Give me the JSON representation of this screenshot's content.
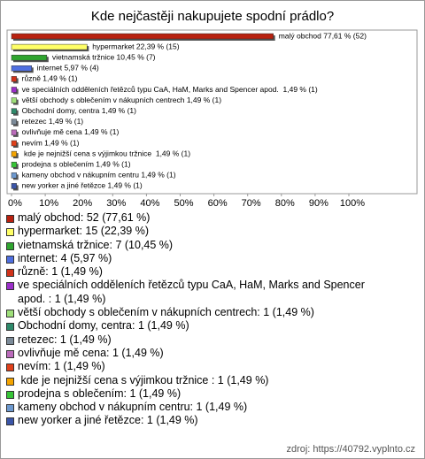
{
  "chart_data": {
    "type": "hbar",
    "title": "Kde nejčastěji nakupujete spodní prádlo?",
    "values": [
      77.61,
      22.39,
      10.45,
      5.97,
      1.49,
      1.49,
      1.49,
      1.49,
      1.49,
      1.49,
      1.49,
      1.49,
      1.49,
      1.49,
      1.49
    ],
    "value_labels": [
      "malý obchod 77,61 % (52)",
      "hypermarket 22,39 % (15)",
      "vietnamská tržnice 10,45 % (7)",
      "internet 5,97 % (4)",
      "různě 1,49 % (1)",
      "ve speciálních odděleních řetězců typu CaA, HaM, Marks and Spencer apod.  1,49 % (1)",
      "větší obchody s oblečením v nákupních centrech 1,49 % (1)",
      "Obchodní domy, centra 1,49 % (1)",
      "retezec 1,49 % (1)",
      "ovlivňuje mě cena 1,49 % (1)",
      "nevím 1,49 % (1)",
      " kde je nejnižší cena s výjimkou tržnice  1,49 % (1)",
      "prodejna s oblečením 1,49 % (1)",
      "kameny obchod v nákupním centru 1,49 % (1)",
      "new yorker a jiné řetězce 1,49 % (1)"
    ],
    "colors": [
      "#b8210f",
      "#ffff66",
      "#2fa52f",
      "#4f6fe0",
      "#d0321a",
      "#9b2fc9",
      "#9fe07a",
      "#2e8a6b",
      "#7c8b99",
      "#bb6bbb",
      "#e0401a",
      "#f4a400",
      "#37c437",
      "#6d99cf",
      "#3a55a8"
    ],
    "xlim": [
      0,
      100
    ],
    "xticks": [
      {
        "value": 0,
        "label": "0%"
      },
      {
        "value": 10,
        "label": "10%"
      },
      {
        "value": 20,
        "label": "20%"
      },
      {
        "value": 30,
        "label": "30%"
      },
      {
        "value": 40,
        "label": "40%"
      },
      {
        "value": 50,
        "label": "50%"
      },
      {
        "value": 60,
        "label": "60%"
      },
      {
        "value": 70,
        "label": "70%"
      },
      {
        "value": 80,
        "label": "80%"
      },
      {
        "value": 90,
        "label": "90%"
      },
      {
        "value": 100,
        "label": "100%"
      }
    ],
    "legend": [
      "malý obchod: 52 (77,61 %)",
      "hypermarket: 15 (22,39 %)",
      "vietnamská tržnice: 7 (10,45 %)",
      "internet: 4 (5,97 %)",
      "různě: 1 (1,49 %)",
      "ve speciálních odděleních řetězců typu CaA, HaM, Marks and Spencer apod. : 1 (1,49 %)",
      "větší obchody s oblečením v nákupních centrech: 1 (1,49 %)",
      "Obchodní domy, centra: 1 (1,49 %)",
      "retezec: 1 (1,49 %)",
      "ovlivňuje mě cena: 1 (1,49 %)",
      "nevím: 1 (1,49 %)",
      " kde je nejnižší cena s výjimkou tržnice : 1 (1,49 %)",
      "prodejna s oblečením: 1 (1,49 %)",
      "kameny obchod v nákupním centru: 1 (1,49 %)",
      "new yorker a jiné řetězce: 1 (1,49 %)"
    ],
    "source": "zdroj: https://40792.vyplnto.cz"
  }
}
